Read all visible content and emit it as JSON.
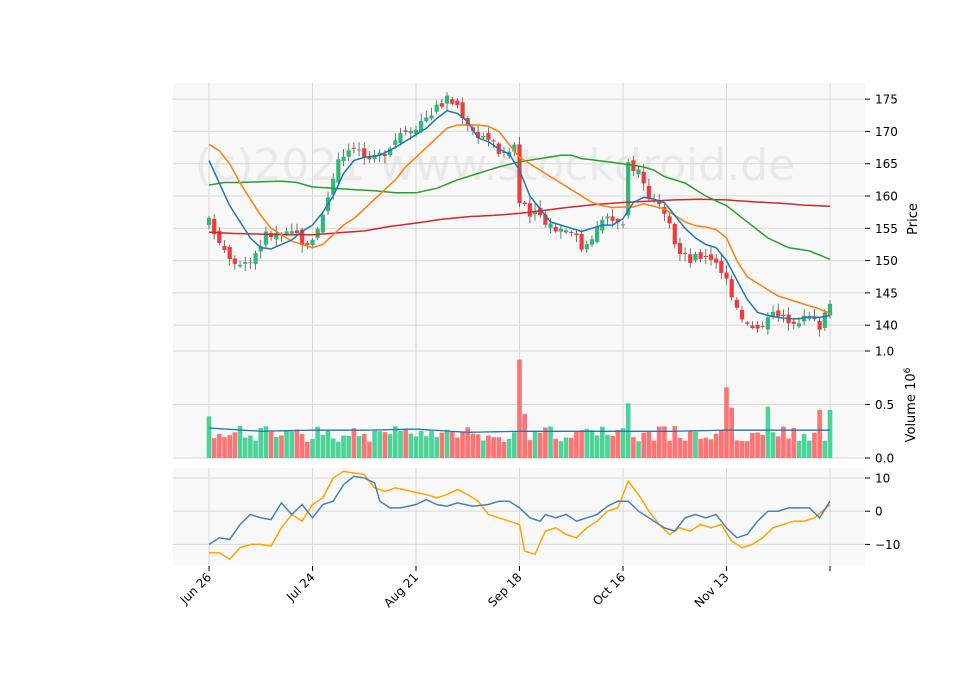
{
  "chart_data": {
    "type": "candlestick",
    "watermark": "(c)2021 www.stockdroid.de",
    "x_ticks": [
      {
        "label": "Jun 26",
        "i": 0
      },
      {
        "label": "Jul 24",
        "i": 20
      },
      {
        "label": "Aug 21",
        "i": 40
      },
      {
        "label": "Sep 18",
        "i": 60
      },
      {
        "label": "Oct 16",
        "i": 80
      },
      {
        "label": "Nov 13",
        "i": 100
      },
      {
        "label": "",
        "i": 120
      }
    ],
    "price": {
      "ylabel": "Price",
      "ylim": [
        136,
        177.5
      ],
      "yticks": [
        140,
        145,
        150,
        155,
        160,
        165,
        170,
        175
      ],
      "anchors_close": [
        [
          0,
          156
        ],
        [
          3,
          152
        ],
        [
          5,
          150
        ],
        [
          8,
          150
        ],
        [
          11,
          154
        ],
        [
          14,
          154
        ],
        [
          17,
          154
        ],
        [
          19,
          152
        ],
        [
          22,
          157
        ],
        [
          25,
          166
        ],
        [
          28,
          168
        ],
        [
          31,
          165
        ],
        [
          34,
          167
        ],
        [
          37,
          170
        ],
        [
          40,
          171
        ],
        [
          43,
          173
        ],
        [
          46,
          175
        ],
        [
          48,
          174
        ],
        [
          51,
          170
        ],
        [
          54,
          169
        ],
        [
          57,
          166
        ],
        [
          59,
          168
        ],
        [
          60,
          159
        ],
        [
          62,
          157
        ],
        [
          64,
          157
        ],
        [
          67,
          155
        ],
        [
          70,
          155
        ],
        [
          72,
          152
        ],
        [
          74,
          154
        ],
        [
          77,
          157
        ],
        [
          80,
          155
        ],
        [
          81,
          165
        ],
        [
          83,
          164
        ],
        [
          85,
          160
        ],
        [
          87,
          158
        ],
        [
          89,
          155
        ],
        [
          91,
          151
        ],
        [
          93,
          150
        ],
        [
          96,
          151
        ],
        [
          98,
          150
        ],
        [
          100,
          147
        ],
        [
          102,
          143
        ],
        [
          104,
          140
        ],
        [
          106,
          139
        ],
        [
          108,
          142
        ],
        [
          111,
          141
        ],
        [
          114,
          141
        ],
        [
          116,
          141
        ],
        [
          118,
          140
        ],
        [
          120,
          144
        ]
      ],
      "sma_short": [
        [
          0,
          165.5
        ],
        [
          2,
          162
        ],
        [
          4,
          158.5
        ],
        [
          6,
          156
        ],
        [
          8,
          153.5
        ],
        [
          10,
          152
        ],
        [
          12,
          151.8
        ],
        [
          14,
          152.5
        ],
        [
          16,
          153.2
        ],
        [
          18,
          154.5
        ],
        [
          20,
          155.5
        ],
        [
          22,
          157.5
        ],
        [
          24,
          160
        ],
        [
          26,
          163.5
        ],
        [
          28,
          165.5
        ],
        [
          30,
          166
        ],
        [
          33,
          166.3
        ],
        [
          36,
          167.5
        ],
        [
          38,
          168.5
        ],
        [
          40,
          169.5
        ],
        [
          42,
          170.5
        ],
        [
          44,
          172
        ],
        [
          46,
          173.2
        ],
        [
          48,
          172.8
        ],
        [
          50,
          171.5
        ],
        [
          52,
          169
        ],
        [
          54,
          168.4
        ],
        [
          56,
          167.3
        ],
        [
          58,
          166.5
        ],
        [
          60,
          164
        ],
        [
          62,
          160
        ],
        [
          64,
          158
        ],
        [
          66,
          156
        ],
        [
          68,
          155.5
        ],
        [
          70,
          155
        ],
        [
          72,
          154.5
        ],
        [
          74,
          155
        ],
        [
          76,
          155.5
        ],
        [
          78,
          155.5
        ],
        [
          80,
          156.5
        ],
        [
          82,
          159
        ],
        [
          84,
          159.8
        ],
        [
          86,
          159.5
        ],
        [
          88,
          159
        ],
        [
          90,
          157
        ],
        [
          92,
          155
        ],
        [
          94,
          153.5
        ],
        [
          96,
          152.5
        ],
        [
          98,
          152
        ],
        [
          100,
          150
        ],
        [
          102,
          147
        ],
        [
          104,
          144
        ],
        [
          106,
          142
        ],
        [
          108,
          141.5
        ],
        [
          110,
          141.2
        ],
        [
          112,
          141
        ],
        [
          114,
          141
        ],
        [
          116,
          141.3
        ],
        [
          118,
          141.2
        ],
        [
          120,
          141.5
        ]
      ],
      "sma_mid": [
        [
          0,
          168
        ],
        [
          2,
          167
        ],
        [
          4,
          165
        ],
        [
          6,
          162
        ],
        [
          8,
          159.5
        ],
        [
          10,
          157
        ],
        [
          12,
          155
        ],
        [
          14,
          154
        ],
        [
          16,
          153
        ],
        [
          18,
          152.5
        ],
        [
          20,
          152
        ],
        [
          22,
          152.5
        ],
        [
          24,
          154
        ],
        [
          26,
          155.5
        ],
        [
          28,
          156.5
        ],
        [
          30,
          158
        ],
        [
          32,
          159.5
        ],
        [
          34,
          161
        ],
        [
          36,
          162.5
        ],
        [
          38,
          164.5
        ],
        [
          40,
          166
        ],
        [
          42,
          167.5
        ],
        [
          44,
          169
        ],
        [
          46,
          170.5
        ],
        [
          48,
          171
        ],
        [
          50,
          171
        ],
        [
          52,
          171
        ],
        [
          54,
          170.8
        ],
        [
          56,
          170
        ],
        [
          58,
          168
        ],
        [
          60,
          166
        ],
        [
          62,
          165
        ],
        [
          64,
          164
        ],
        [
          66,
          163
        ],
        [
          68,
          162
        ],
        [
          70,
          161
        ],
        [
          72,
          160
        ],
        [
          74,
          159
        ],
        [
          76,
          158.5
        ],
        [
          78,
          158.2
        ],
        [
          80,
          158.3
        ],
        [
          82,
          158.3
        ],
        [
          84,
          158.8
        ],
        [
          86,
          158.4
        ],
        [
          88,
          158
        ],
        [
          90,
          157
        ],
        [
          92,
          156
        ],
        [
          94,
          155.4
        ],
        [
          96,
          155.2
        ],
        [
          98,
          154.8
        ],
        [
          100,
          153.5
        ],
        [
          102,
          150
        ],
        [
          104,
          147.5
        ],
        [
          106,
          146.5
        ],
        [
          108,
          145.5
        ],
        [
          110,
          144.5
        ],
        [
          112,
          144
        ],
        [
          114,
          143.5
        ],
        [
          116,
          143
        ],
        [
          118,
          142.5
        ],
        [
          120,
          141.8
        ]
      ],
      "sma_long": [
        [
          0,
          161.7
        ],
        [
          3,
          162.1
        ],
        [
          6,
          162.1
        ],
        [
          10,
          162.2
        ],
        [
          14,
          162.3
        ],
        [
          17,
          162.1
        ],
        [
          20,
          161.4
        ],
        [
          24,
          161.2
        ],
        [
          28,
          161
        ],
        [
          32,
          160.8
        ],
        [
          36,
          160.5
        ],
        [
          40,
          160.5
        ],
        [
          44,
          161.2
        ],
        [
          48,
          162.5
        ],
        [
          52,
          163.5
        ],
        [
          56,
          164.5
        ],
        [
          60,
          165.3
        ],
        [
          64,
          165.8
        ],
        [
          68,
          166.3
        ],
        [
          70,
          166.3
        ],
        [
          72,
          165.8
        ],
        [
          76,
          165.4
        ],
        [
          80,
          165
        ],
        [
          84,
          164.5
        ],
        [
          86,
          164
        ],
        [
          88,
          163
        ],
        [
          92,
          162
        ],
        [
          96,
          160
        ],
        [
          100,
          158.5
        ],
        [
          104,
          156
        ],
        [
          108,
          153.5
        ],
        [
          112,
          152
        ],
        [
          116,
          151.5
        ],
        [
          120,
          150.2
        ]
      ],
      "sma_200": [
        [
          0,
          154.4
        ],
        [
          5,
          154.2
        ],
        [
          10,
          154.1
        ],
        [
          15,
          154
        ],
        [
          20,
          154
        ],
        [
          25,
          154.3
        ],
        [
          30,
          154.6
        ],
        [
          35,
          155.3
        ],
        [
          40,
          155.8
        ],
        [
          45,
          156.4
        ],
        [
          50,
          156.8
        ],
        [
          55,
          157
        ],
        [
          60,
          157.3
        ],
        [
          65,
          157.8
        ],
        [
          70,
          158.3
        ],
        [
          75,
          158.7
        ],
        [
          80,
          159
        ],
        [
          85,
          159.2
        ],
        [
          90,
          159.4
        ],
        [
          95,
          159.5
        ],
        [
          100,
          159.4
        ],
        [
          105,
          159.1
        ],
        [
          110,
          158.9
        ],
        [
          115,
          158.6
        ],
        [
          120,
          158.4
        ]
      ]
    },
    "volume": {
      "ylabel": "Volume  10",
      "ylabel_exp": "6",
      "ylim": [
        0,
        1.0
      ],
      "yticks": [
        0.0,
        0.5,
        1.0
      ],
      "ytick_labels": [
        "0.0",
        "0.5",
        "1.0"
      ],
      "avg": [
        [
          0,
          0.28
        ],
        [
          10,
          0.25
        ],
        [
          20,
          0.26
        ],
        [
          30,
          0.26
        ],
        [
          40,
          0.27
        ],
        [
          50,
          0.24
        ],
        [
          60,
          0.25
        ],
        [
          70,
          0.25
        ],
        [
          80,
          0.25
        ],
        [
          90,
          0.25
        ],
        [
          100,
          0.26
        ],
        [
          110,
          0.26
        ],
        [
          120,
          0.26
        ]
      ]
    },
    "indicator": {
      "ylim": [
        -16.5,
        13
      ],
      "yticks": [
        -10,
        0,
        10
      ],
      "ytick_labels": [
        "−10",
        "0",
        "10"
      ],
      "line1": [
        [
          0,
          -10
        ],
        [
          2,
          -8
        ],
        [
          4,
          -8.5
        ],
        [
          6,
          -4
        ],
        [
          8,
          -1
        ],
        [
          10,
          -2
        ],
        [
          12,
          -2.5
        ],
        [
          14,
          2.5
        ],
        [
          16,
          -1
        ],
        [
          18,
          2
        ],
        [
          20,
          -2
        ],
        [
          22,
          2
        ],
        [
          24,
          3
        ],
        [
          26,
          8
        ],
        [
          28,
          10.5
        ],
        [
          30,
          10
        ],
        [
          32,
          8.5
        ],
        [
          33,
          3
        ],
        [
          35,
          1
        ],
        [
          37,
          1
        ],
        [
          40,
          2
        ],
        [
          42,
          3.5
        ],
        [
          44,
          2
        ],
        [
          46,
          1.5
        ],
        [
          48,
          2.5
        ],
        [
          51,
          1.5
        ],
        [
          54,
          2
        ],
        [
          56,
          3
        ],
        [
          58,
          3
        ],
        [
          60,
          1
        ],
        [
          62,
          -2
        ],
        [
          64,
          -3
        ],
        [
          65,
          -1
        ],
        [
          67,
          -2
        ],
        [
          69,
          -1
        ],
        [
          71,
          -3
        ],
        [
          73,
          -2
        ],
        [
          75,
          -1
        ],
        [
          77,
          1.5
        ],
        [
          79,
          3
        ],
        [
          81,
          3
        ],
        [
          83,
          0
        ],
        [
          84,
          -1
        ],
        [
          86,
          -3
        ],
        [
          88,
          -5
        ],
        [
          90,
          -6
        ],
        [
          92,
          -2
        ],
        [
          94,
          -1
        ],
        [
          96,
          -2
        ],
        [
          98,
          -1
        ],
        [
          100,
          -5
        ],
        [
          102,
          -8
        ],
        [
          104,
          -7
        ],
        [
          106,
          -3
        ],
        [
          108,
          0
        ],
        [
          110,
          0
        ],
        [
          112,
          1
        ],
        [
          114,
          1
        ],
        [
          116,
          1
        ],
        [
          118,
          -2
        ],
        [
          120,
          3
        ]
      ],
      "line2": [
        [
          0,
          -12.5
        ],
        [
          2,
          -12.5
        ],
        [
          4,
          -14.5
        ],
        [
          6,
          -11
        ],
        [
          8,
          -10
        ],
        [
          10,
          -10
        ],
        [
          12,
          -10.5
        ],
        [
          14,
          -5
        ],
        [
          16,
          -1
        ],
        [
          18,
          -3
        ],
        [
          20,
          2
        ],
        [
          22,
          4
        ],
        [
          24,
          10
        ],
        [
          26,
          12
        ],
        [
          28,
          11.5
        ],
        [
          30,
          11
        ],
        [
          32,
          7
        ],
        [
          34,
          6
        ],
        [
          36,
          7
        ],
        [
          39,
          6
        ],
        [
          42,
          5
        ],
        [
          44,
          4
        ],
        [
          46,
          5
        ],
        [
          48,
          6.5
        ],
        [
          50,
          5
        ],
        [
          52,
          3
        ],
        [
          54,
          -1
        ],
        [
          56,
          -2
        ],
        [
          58,
          -3
        ],
        [
          60,
          -4
        ],
        [
          61,
          -12
        ],
        [
          63,
          -13
        ],
        [
          65,
          -6
        ],
        [
          67,
          -5
        ],
        [
          69,
          -7
        ],
        [
          71,
          -8
        ],
        [
          73,
          -5
        ],
        [
          75,
          -3
        ],
        [
          77,
          0
        ],
        [
          79,
          1
        ],
        [
          81,
          9
        ],
        [
          83,
          5
        ],
        [
          85,
          0
        ],
        [
          87,
          -4
        ],
        [
          89,
          -7
        ],
        [
          91,
          -5
        ],
        [
          93,
          -6
        ],
        [
          95,
          -4
        ],
        [
          97,
          -5
        ],
        [
          99,
          -4
        ],
        [
          101,
          -9
        ],
        [
          103,
          -11
        ],
        [
          105,
          -10
        ],
        [
          107,
          -8
        ],
        [
          109,
          -5
        ],
        [
          111,
          -4
        ],
        [
          113,
          -3
        ],
        [
          115,
          -3
        ],
        [
          117,
          -2
        ],
        [
          120,
          2
        ]
      ]
    },
    "colors": {
      "up": "#2eb87b",
      "down": "#ef3b3b",
      "up_vol": "#2ecc8a",
      "down_vol": "#ff5c5c",
      "sma_short": "#1f77b4",
      "sma_mid": "#ff7f0e",
      "sma_long": "#2ca02c",
      "sma_200": "#d62728",
      "vol_avg": "#1f77b4",
      "ind1": "#4682b4",
      "ind2": "#ffa500",
      "grid": "#d9d9d9",
      "panel_bg": "#f8f8f8"
    }
  }
}
